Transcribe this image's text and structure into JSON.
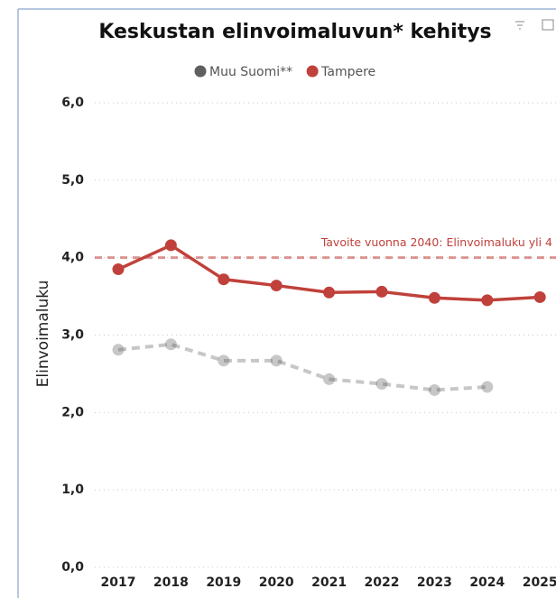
{
  "chart_data": {
    "type": "line",
    "title": "Keskustan elinvoimaluvun* kehitys",
    "y_label": "Elinvoimaluku",
    "categories": [
      "2017",
      "2018",
      "2019",
      "2020",
      "2021",
      "2022",
      "2023",
      "2024",
      "2025"
    ],
    "series": [
      {
        "name": "Muu Suomi**",
        "color": "#5f5f5f",
        "line_style": "dashed",
        "values": [
          2.81,
          2.88,
          2.67,
          2.67,
          2.43,
          2.37,
          2.29,
          2.33,
          null
        ]
      },
      {
        "name": "Tampere",
        "color": "#c0413b",
        "line_style": "solid",
        "values": [
          3.85,
          4.16,
          3.72,
          3.64,
          3.55,
          3.56,
          3.48,
          3.45,
          3.49
        ]
      }
    ],
    "reference_line": {
      "value": 4,
      "label": "Tavoite vuonna 2040: Elinvoimaluku yli 4",
      "color": "#c0413b"
    },
    "ylim": [
      0,
      6
    ],
    "yticks": [
      {
        "value": 0,
        "label": "0,0"
      },
      {
        "value": 1,
        "label": "1,0"
      },
      {
        "value": 2,
        "label": "2,0"
      },
      {
        "value": 3,
        "label": "3,0"
      },
      {
        "value": 4,
        "label": "4,0"
      },
      {
        "value": 5,
        "label": "5,0"
      },
      {
        "value": 6,
        "label": "6,0"
      }
    ],
    "grid": true,
    "legend": "top"
  }
}
